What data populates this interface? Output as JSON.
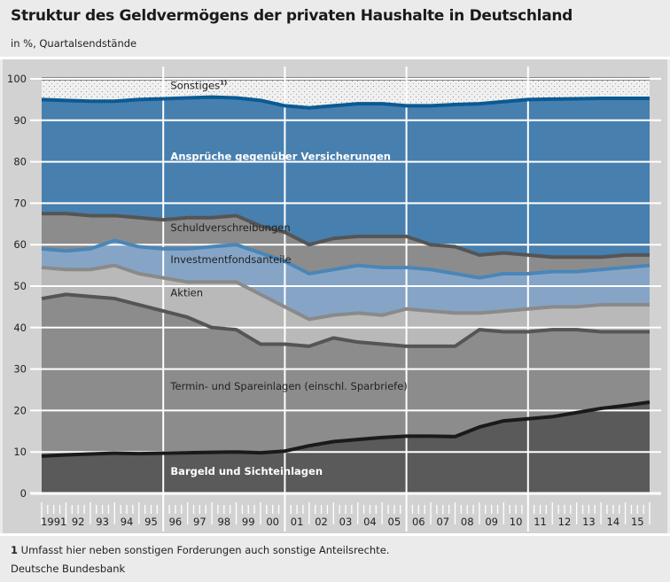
{
  "header": {
    "title": "Struktur des Geldvermögens der privaten Haushalte in Deutschland",
    "subtitle": "in %, Quartalsendstände"
  },
  "footer": {
    "note_number": "1",
    "note_text": " Umfasst hier neben sonstigen Forderungen auch sonstige Anteilsrechte.",
    "source": "Deutsche Bundesbank"
  },
  "chart_data": {
    "type": "area",
    "stacked": true,
    "title": "Struktur des Geldvermögens der privaten Haushalte in Deutschland",
    "subtitle": "in %, Quartalsendstände",
    "xlabel": "",
    "ylabel": "in %",
    "ylim": [
      0,
      100
    ],
    "xlim": [
      1991,
      2016
    ],
    "yticks": [
      0,
      10,
      20,
      30,
      40,
      50,
      60,
      70,
      80,
      90,
      100
    ],
    "xtick_labels": [
      "1991",
      "92",
      "93",
      "94",
      "95",
      "96",
      "97",
      "98",
      "99",
      "00",
      "01",
      "02",
      "03",
      "04",
      "05",
      "06",
      "07",
      "08",
      "09",
      "10",
      "11",
      "12",
      "13",
      "14",
      "15"
    ],
    "grid": true,
    "x": [
      1991.0,
      1992.0,
      1993.0,
      1994.0,
      1995.0,
      1996.0,
      1997.0,
      1998.0,
      1999.0,
      2000.0,
      2001.0,
      2002.0,
      2003.0,
      2004.0,
      2005.0,
      2006.0,
      2007.0,
      2008.0,
      2009.0,
      2010.0,
      2011.0,
      2012.0,
      2013.0,
      2014.0,
      2015.0,
      2016.0
    ],
    "cumulative_boundaries_note": "Each series lists the upper boundary (cumulative %) of its band; the band lies between the previous series' boundary and this one.",
    "series": [
      {
        "name": "Bargeld und Sichteinlagen",
        "label_color": "#ffffff",
        "fill": "#5a5a5a",
        "line": "#1a1a1a",
        "values": [
          9.0,
          9.3,
          9.5,
          9.7,
          9.6,
          9.7,
          9.8,
          9.9,
          10.0,
          9.8,
          10.2,
          11.5,
          12.5,
          13.0,
          13.5,
          13.8,
          13.8,
          13.7,
          16.0,
          17.5,
          18.0,
          18.5,
          19.5,
          20.5,
          21.2,
          22.0
        ]
      },
      {
        "name": "Termin- und Spareinlagen (einschl. Sparbriefe)",
        "label_color": "#222222",
        "fill": "#8c8c8c",
        "line": "#555555",
        "values": [
          47.0,
          48.0,
          47.5,
          47.0,
          45.5,
          44.0,
          42.5,
          40.0,
          39.5,
          36.0,
          36.0,
          35.5,
          37.5,
          36.5,
          36.0,
          35.5,
          35.5,
          35.5,
          39.5,
          39.0,
          39.0,
          39.5,
          39.5,
          39.0,
          39.0,
          39.0
        ]
      },
      {
        "name": "Aktien",
        "label_color": "#222222",
        "fill": "#b9b9b9",
        "line": "#8a8a8a",
        "values": [
          54.5,
          54.0,
          54.0,
          55.0,
          53.0,
          52.0,
          51.0,
          51.0,
          51.0,
          48.0,
          45.0,
          42.0,
          43.0,
          43.5,
          43.0,
          44.5,
          44.0,
          43.5,
          43.5,
          44.0,
          44.5,
          45.0,
          45.0,
          45.5,
          45.5,
          45.5
        ]
      },
      {
        "name": "Investmentfondsanteile",
        "label_color": "#222222",
        "fill": "#86a5c6",
        "line": "#4a86b8",
        "values": [
          59.0,
          58.5,
          59.0,
          61.0,
          59.5,
          59.0,
          59.0,
          59.5,
          60.0,
          58.0,
          56.0,
          53.0,
          54.0,
          55.0,
          54.5,
          54.5,
          54.0,
          53.0,
          52.0,
          53.0,
          53.0,
          53.5,
          53.5,
          54.0,
          54.5,
          55.0
        ]
      },
      {
        "name": "Schuldverschreibungen",
        "label_color": "#222222",
        "fill": "#8c8c8c",
        "line": "#555555",
        "values": [
          67.5,
          67.5,
          67.0,
          67.0,
          66.5,
          66.0,
          66.5,
          66.5,
          67.0,
          64.5,
          63.0,
          60.0,
          61.5,
          62.0,
          62.0,
          62.0,
          60.0,
          59.5,
          57.5,
          58.0,
          57.5,
          57.0,
          57.0,
          57.0,
          57.5,
          57.5
        ]
      },
      {
        "name": "Ansprüche gegenüber Versicherungen",
        "label_color": "#ffffff",
        "fill": "#477fae",
        "line": "#0a5a94",
        "values": [
          95.0,
          94.8,
          94.6,
          94.6,
          95.0,
          95.2,
          95.4,
          95.6,
          95.4,
          94.8,
          93.5,
          93.0,
          93.5,
          94.0,
          94.0,
          93.5,
          93.5,
          93.8,
          94.0,
          94.5,
          95.0,
          95.1,
          95.2,
          95.3,
          95.3,
          95.3
        ]
      },
      {
        "name": "Sonstiges 1)",
        "label_color": "#222222",
        "fill": "#f0f0f0",
        "pattern": "dotted",
        "values": [
          100,
          100,
          100,
          100,
          100,
          100,
          100,
          100,
          100,
          100,
          100,
          100,
          100,
          100,
          100,
          100,
          100,
          100,
          100,
          100,
          100,
          100,
          100,
          100,
          100,
          100
        ]
      }
    ],
    "annotations": [
      {
        "text": "Sonstiges",
        "superscript": "1)",
        "series": "Sonstiges 1)",
        "at": [
          1996.3,
          97.5
        ]
      },
      {
        "text": "Ansprüche gegenüber Versicherungen",
        "series": "Ansprüche gegenüber Versicherungen",
        "at": [
          1996.3,
          80.5
        ]
      },
      {
        "text": "Schuldverschreibungen",
        "series": "Schuldverschreibungen",
        "at": [
          1996.3,
          63.2
        ]
      },
      {
        "text": "Investmentfondsanteile",
        "series": "Investmentfondsanteile",
        "at": [
          1996.3,
          55.6
        ]
      },
      {
        "text": "Aktien",
        "series": "Aktien",
        "at": [
          1996.3,
          47.5
        ]
      },
      {
        "text": "Termin- und Spareinlagen (einschl. Sparbriefe)",
        "series": "Termin- und Spareinlagen (einschl. Sparbriefe)",
        "at": [
          1996.3,
          25.0
        ]
      },
      {
        "text": "Bargeld und Sichteinlagen",
        "series": "Bargeld und Sichteinlagen",
        "at": [
          1996.3,
          4.5
        ]
      }
    ],
    "vertical_separators": [
      1996,
      2001,
      2006,
      2011
    ]
  }
}
